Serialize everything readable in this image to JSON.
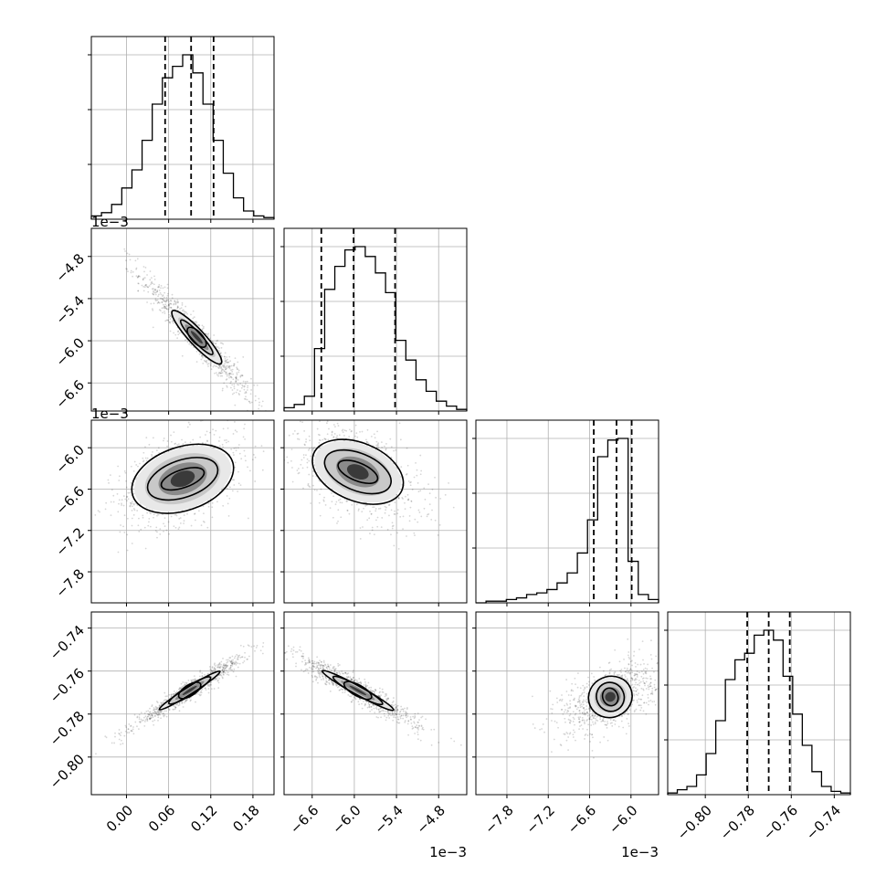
{
  "chart_data": {
    "type": "corner",
    "grid": true,
    "parameters": [
      {
        "ticks": [
          0.0,
          0.06,
          0.12,
          0.18
        ],
        "tick_labels": [
          "0.00",
          "0.06",
          "0.12",
          "0.18"
        ],
        "range": [
          -0.05,
          0.21
        ],
        "offset_text": "",
        "quantiles": [
          0.055,
          0.092,
          0.124
        ],
        "hist": [
          0.02,
          0.04,
          0.09,
          0.19,
          0.3,
          0.48,
          0.7,
          0.86,
          0.93,
          1.0,
          0.89,
          0.7,
          0.48,
          0.28,
          0.13,
          0.05,
          0.02,
          0.01
        ],
        "scale": 1
      },
      {
        "ticks": [
          -6.6,
          -6.0,
          -5.4,
          -4.8
        ],
        "tick_labels": [
          "−6.6",
          "−6.0",
          "−5.4",
          "−4.8"
        ],
        "range": [
          -7.0,
          -4.4
        ],
        "offset_text": "1e−3",
        "quantiles": [
          -6.47,
          -6.01,
          -5.42
        ],
        "hist": [
          0.02,
          0.04,
          0.09,
          0.38,
          0.74,
          0.88,
          0.98,
          1.0,
          0.94,
          0.84,
          0.72,
          0.43,
          0.31,
          0.19,
          0.12,
          0.06,
          0.03,
          0.01
        ],
        "scale": 0.001
      },
      {
        "ticks": [
          -7.8,
          -7.2,
          -6.6,
          -6.0
        ],
        "tick_labels": [
          "−7.8",
          "−7.2",
          "−6.6",
          "−6.0"
        ],
        "range": [
          -8.25,
          -5.6
        ],
        "offset_text": "1e−3",
        "quantiles": [
          -6.54,
          -6.21,
          -5.99
        ],
        "hist": [
          0.0,
          0.01,
          0.01,
          0.02,
          0.03,
          0.05,
          0.06,
          0.08,
          0.12,
          0.18,
          0.3,
          0.5,
          0.88,
          0.98,
          0.99,
          0.25,
          0.05,
          0.02
        ],
        "scale": 0.001
      },
      {
        "ticks": [
          -0.8,
          -0.78,
          -0.76,
          -0.74
        ],
        "tick_labels": [
          "−0.80",
          "−0.78",
          "−0.76",
          "−0.74"
        ],
        "range": [
          -0.8175,
          -0.7325
        ],
        "offset_text": "",
        "quantiles": [
          -0.7805,
          -0.7705,
          -0.7607
        ],
        "hist": [
          0.01,
          0.03,
          0.05,
          0.12,
          0.25,
          0.45,
          0.7,
          0.82,
          0.86,
          0.97,
          1.0,
          0.94,
          0.72,
          0.49,
          0.3,
          0.14,
          0.05,
          0.02,
          0.01
        ],
        "scale": 1
      }
    ],
    "pairs": [
      {
        "x": 0,
        "y": 1,
        "center": [
          0.1,
          -5.95
        ],
        "sd": [
          0.04,
          0.45
        ],
        "corr": -0.96,
        "levels": [
          [
            0.051,
            0.11
          ],
          [
            0.033,
            0.055
          ],
          [
            0.018,
            0.025
          ]
        ]
      },
      {
        "x": 0,
        "y": 2,
        "center": [
          0.08,
          -6.45
        ],
        "sd": [
          0.045,
          0.35
        ],
        "corr": 0.45,
        "levels": [
          [
            0.075,
            0.46
          ],
          [
            0.052,
            0.27
          ],
          [
            0.032,
            0.13
          ]
        ]
      },
      {
        "x": 1,
        "y": 2,
        "center": [
          -5.95,
          -6.35
        ],
        "sd": [
          0.45,
          0.38
        ],
        "corr": -0.5,
        "levels": [
          [
            0.68,
            0.42
          ],
          [
            0.5,
            0.27
          ],
          [
            0.3,
            0.13
          ]
        ]
      },
      {
        "x": 0,
        "y": 3,
        "center": [
          0.09,
          -0.769
        ],
        "sd": [
          0.04,
          0.0085
        ],
        "corr": 0.97,
        "levels": [
          [
            0.051,
            0.0013
          ],
          [
            0.035,
            0.0007
          ],
          [
            0.018,
            0.00035
          ]
        ]
      },
      {
        "x": 1,
        "y": 3,
        "center": [
          -5.95,
          -0.769
        ],
        "sd": [
          0.45,
          0.0085
        ],
        "corr": -0.95,
        "levels": [
          [
            0.58,
            0.002
          ],
          [
            0.4,
            0.0012
          ],
          [
            0.22,
            0.0007
          ]
        ]
      },
      {
        "x": 2,
        "y": 3,
        "center": [
          -6.3,
          -0.772
        ],
        "sd": [
          0.35,
          0.0085
        ],
        "corr": 0.55,
        "levels": [
          [
            0.32,
            0.0095
          ],
          [
            0.2,
            0.0068
          ],
          [
            0.11,
            0.0042
          ]
        ]
      }
    ]
  }
}
